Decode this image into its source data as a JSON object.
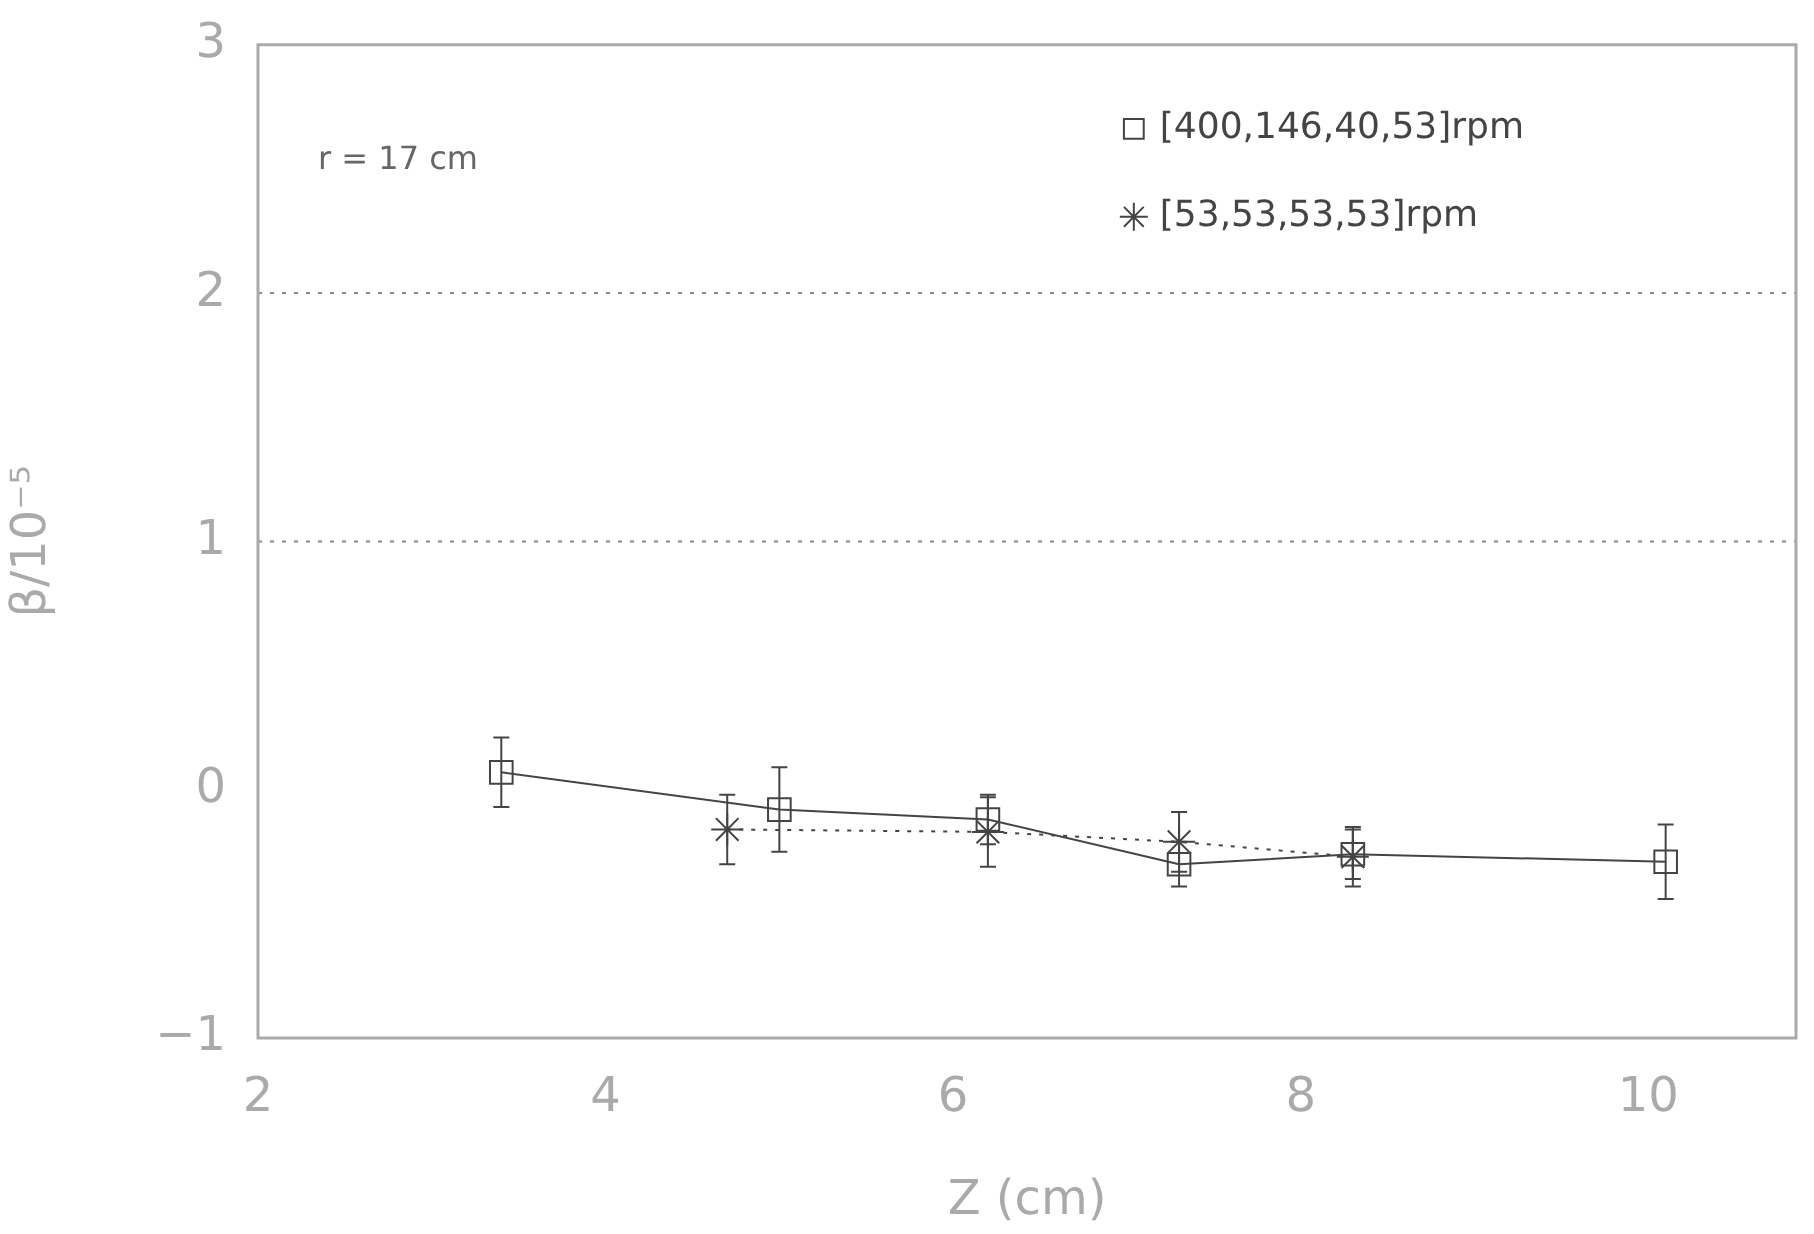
{
  "chart_data": {
    "type": "line",
    "xlabel": "Z (cm)",
    "ylabel": "β/10⁻⁵",
    "xlim": [
      2,
      10.85
    ],
    "xticks": [
      2,
      4,
      6,
      8,
      10
    ],
    "ylim": [
      -1,
      3
    ],
    "yticks": [
      -1,
      0,
      1,
      2,
      3
    ],
    "series": [
      {
        "name": "[400,146,40,53]rpm",
        "color": "#444444",
        "marker": "square",
        "line_style": "solid",
        "x": [
          3.4,
          5.0,
          6.2,
          7.3,
          8.3,
          10.1
        ],
        "values": [
          0.07,
          -0.08,
          -0.12,
          -0.3,
          -0.26,
          -0.29
        ],
        "errors": [
          0.14,
          0.17,
          0.1,
          0.09,
          0.1,
          0.15
        ]
      },
      {
        "name": "[53,53,53,53]rpm",
        "color": "#444444",
        "marker": "cross",
        "line_style": "dotted",
        "x": [
          4.7,
          6.2,
          7.3,
          8.3
        ],
        "values": [
          -0.16,
          -0.17,
          -0.21,
          -0.27
        ],
        "errors": [
          0.14,
          0.14,
          0.12,
          0.12
        ]
      }
    ],
    "ref_lines": [
      {
        "axis": "y",
        "value": 1,
        "line_style": "dotted",
        "color": "#888888"
      },
      {
        "axis": "y",
        "value": 2,
        "line_style": "dotted",
        "color": "#888888"
      }
    ],
    "annotations": [
      "r = 17 cm"
    ],
    "legend": "top right",
    "grid": false
  }
}
